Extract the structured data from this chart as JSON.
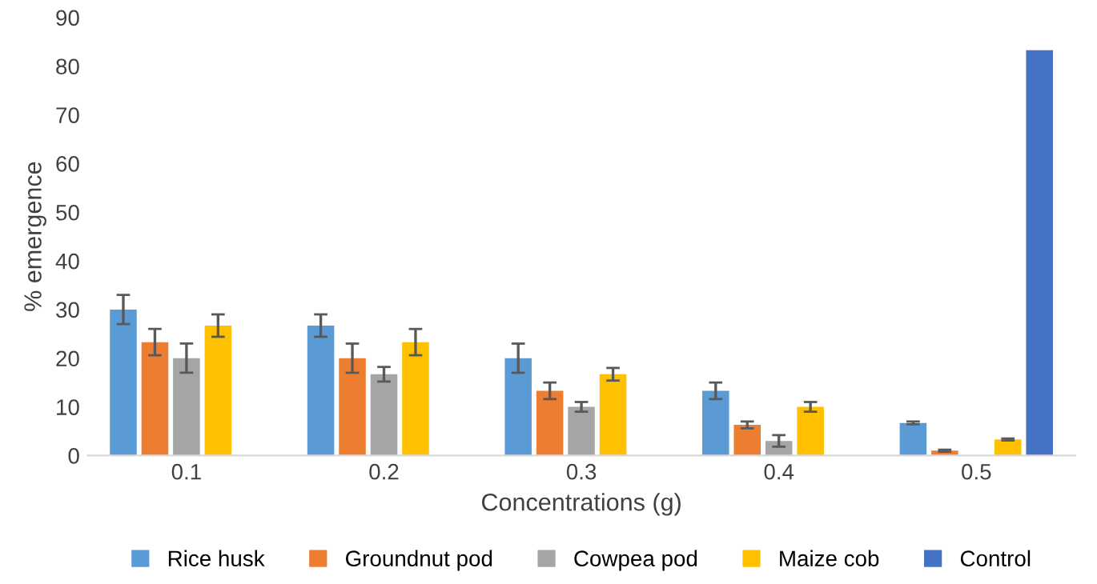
{
  "chart_data": {
    "type": "bar",
    "xlabel": "Concentrations (g)",
    "ylabel": "% emergence",
    "categories": [
      "0.1",
      "0.2",
      "0.3",
      "0.4",
      "0.5"
    ],
    "series": [
      {
        "name": "Rice husk",
        "color": "#5b9bd5",
        "values": [
          30,
          26.7,
          20,
          13.3,
          6.7
        ],
        "errors": [
          3,
          2.3,
          3,
          1.7,
          0.3
        ]
      },
      {
        "name": "Groundnut pod",
        "color": "#ed7d31",
        "values": [
          23.3,
          20,
          13.3,
          6.3,
          1
        ],
        "errors": [
          2.7,
          3,
          1.7,
          0.7,
          0.2
        ]
      },
      {
        "name": "Cowpea pod",
        "color": "#a5a5a5",
        "values": [
          20,
          16.7,
          10,
          3,
          0
        ],
        "errors": [
          3,
          1.5,
          1,
          1.2,
          null
        ]
      },
      {
        "name": "Maize cob",
        "color": "#ffc000",
        "values": [
          26.7,
          23.3,
          16.7,
          10,
          3.3
        ],
        "errors": [
          2.3,
          2.7,
          1.3,
          1,
          0.2
        ]
      },
      {
        "name": "Control",
        "color": "#4472c4",
        "values": [
          null,
          null,
          null,
          null,
          83.3
        ]
      }
    ],
    "ylim": [
      0,
      90
    ],
    "yticks": [
      0,
      10,
      20,
      30,
      40,
      50,
      60,
      70,
      80,
      90
    ],
    "grid": false,
    "legend": "bottom"
  }
}
